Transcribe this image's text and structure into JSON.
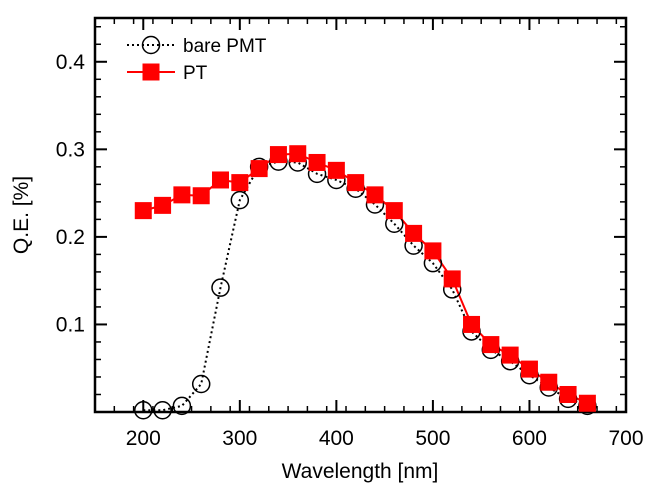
{
  "chart_data": {
    "type": "line",
    "title": "",
    "xlabel": "Wavelength [nm]",
    "ylabel": "Q.E. [%]",
    "xlim": [
      150,
      700
    ],
    "ylim": [
      0,
      0.45
    ],
    "xticks": [
      200,
      300,
      400,
      500,
      600,
      700
    ],
    "xtick_labels": [
      "200",
      "300",
      "400",
      "500",
      "600",
      "700"
    ],
    "yticks": [
      0.1,
      0.2,
      0.3,
      0.4
    ],
    "ytick_labels": [
      "0.1",
      "0.2",
      "0.3",
      "0.4"
    ],
    "grid": false,
    "legend_position": "top-left",
    "series": [
      {
        "name": "bare PMT",
        "marker": "open-circle",
        "line": "dotted",
        "color": "#000000",
        "x": [
          200,
          220,
          240,
          260,
          280,
          300,
          320,
          340,
          360,
          380,
          400,
          420,
          440,
          460,
          480,
          500,
          520,
          540,
          560,
          580,
          600,
          620,
          640,
          660
        ],
        "y": [
          0.002,
          0.002,
          0.007,
          0.032,
          0.142,
          0.242,
          0.28,
          0.286,
          0.285,
          0.272,
          0.265,
          0.255,
          0.237,
          0.215,
          0.19,
          0.17,
          0.14,
          0.092,
          0.071,
          0.058,
          0.042,
          0.028,
          0.015,
          0.007
        ]
      },
      {
        "name": "PT",
        "marker": "filled-square",
        "line": "solid",
        "color": "#ff0000",
        "x": [
          200,
          220,
          240,
          260,
          280,
          300,
          320,
          340,
          360,
          380,
          400,
          420,
          440,
          460,
          480,
          500,
          520,
          540,
          560,
          580,
          600,
          620,
          640,
          660
        ],
        "y": [
          0.23,
          0.236,
          0.248,
          0.247,
          0.265,
          0.262,
          0.278,
          0.294,
          0.295,
          0.285,
          0.276,
          0.262,
          0.248,
          0.23,
          0.204,
          0.184,
          0.152,
          0.1,
          0.077,
          0.065,
          0.049,
          0.034,
          0.02,
          0.01
        ]
      }
    ]
  }
}
